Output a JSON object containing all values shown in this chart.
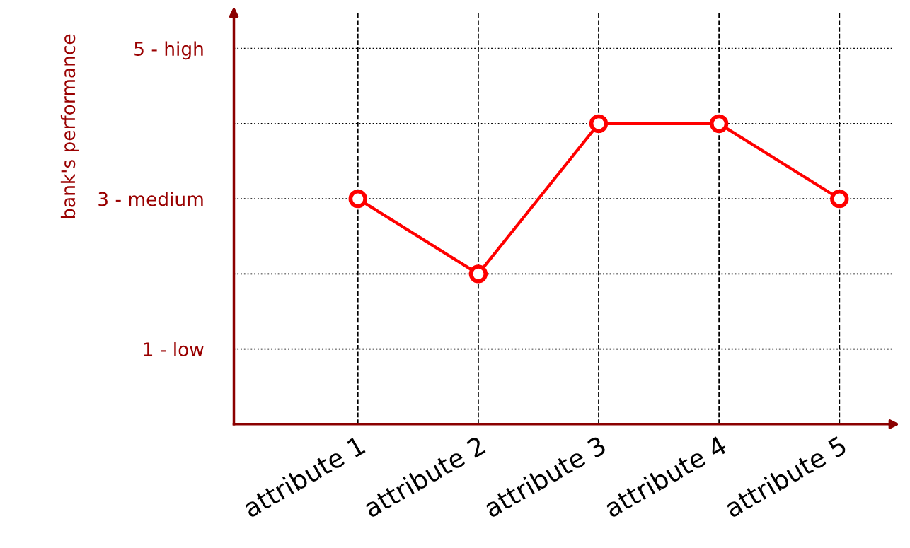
{
  "chart_data": {
    "type": "line",
    "ylabel": "bank's performance",
    "categories": [
      "attribute 1",
      "attribute 2",
      "attribute 3",
      "attribute 4",
      "attribute 5"
    ],
    "series": [
      {
        "color": "#ff0000",
        "values": [
          3,
          2,
          4,
          4,
          3
        ]
      }
    ],
    "ylim": [
      0,
      5.5
    ],
    "yticks": [
      {
        "value": 1,
        "label": "1 - low"
      },
      {
        "value": 2,
        "label": null
      },
      {
        "value": 3,
        "label": "3 - medium"
      },
      {
        "value": 4,
        "label": null
      },
      {
        "value": 5,
        "label": "5 - high"
      }
    ],
    "grid": true,
    "marker": "circle",
    "line_style": "solid",
    "legend": false
  }
}
